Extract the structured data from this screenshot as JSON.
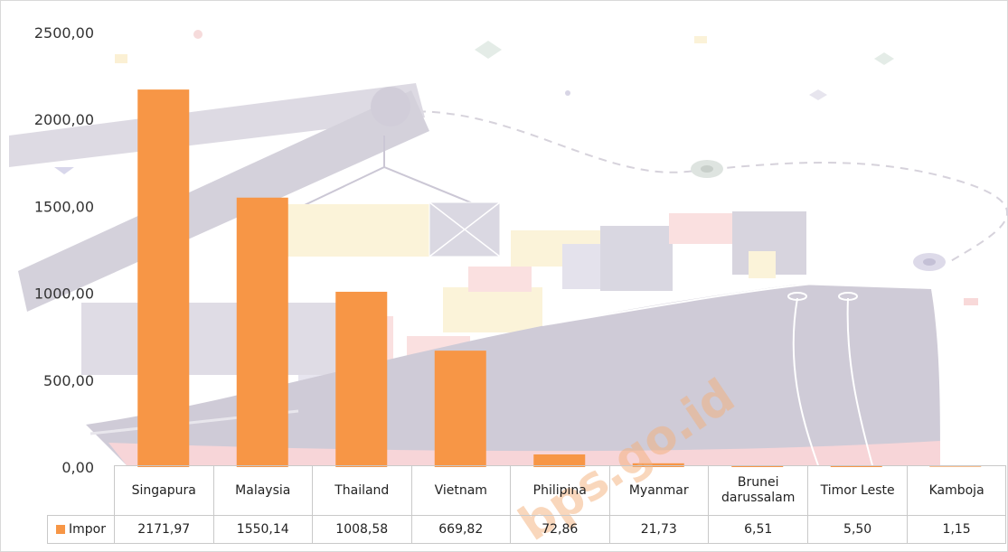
{
  "watermark": "bps.go.id",
  "colors": {
    "bar": "#F79646"
  },
  "chart_data": {
    "type": "bar",
    "categories": [
      "Singapura",
      "Malaysia",
      "Thailand",
      "Vietnam",
      "Philipina",
      "Myanmar",
      "Brunei darussalam",
      "Timor Leste",
      "Kamboja"
    ],
    "series": [
      {
        "name": "Impor",
        "values": [
          2171.97,
          1550.14,
          1008.58,
          669.82,
          72.86,
          21.73,
          6.51,
          5.5,
          1.15
        ],
        "labels": [
          "2171,97",
          "1550,14",
          "1008,58",
          "669,82",
          "72,86",
          "21,73",
          "6,51",
          "5,50",
          "1,15"
        ]
      }
    ],
    "ylim": [
      0,
      2500
    ],
    "yticks": [
      "0,00",
      "500,00",
      "1000,00",
      "1500,00",
      "2000,00",
      "2500,00"
    ],
    "grid": false,
    "legend": "data-table"
  }
}
